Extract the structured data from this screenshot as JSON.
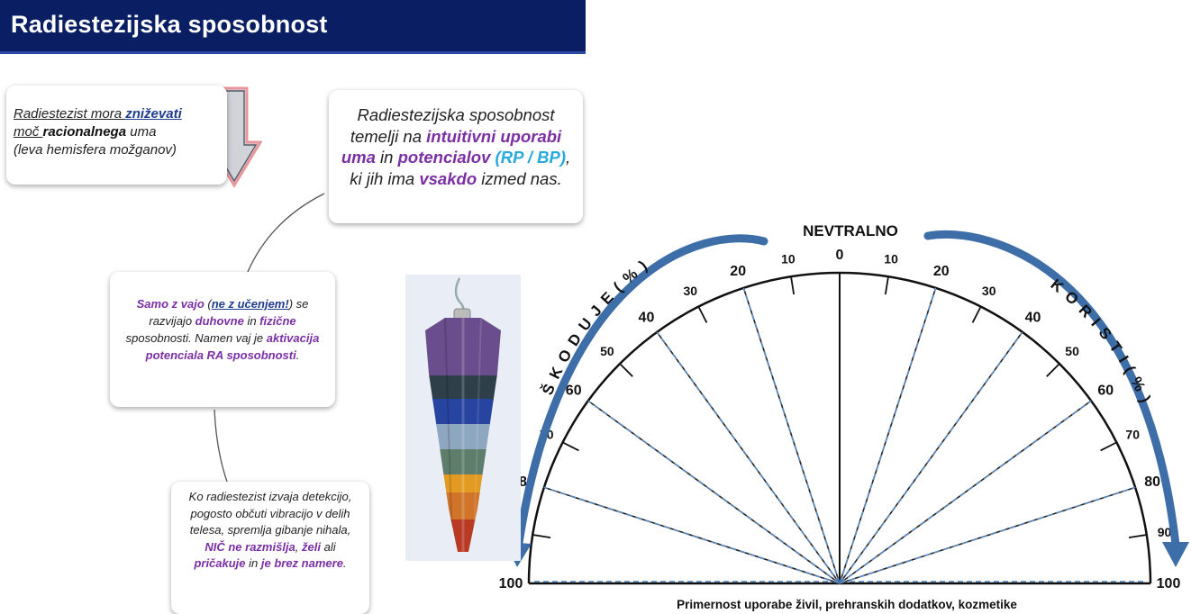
{
  "title": "Radiestezijska sposobnost",
  "box1": {
    "p1": "Radiestezist mora ",
    "p2": "zniževati",
    "p3": "moč ",
    "p4": "racionalnega",
    "p5": " uma",
    "p6": "(leva hemisfera možganov)"
  },
  "box2": {
    "p1": "Radiestezijska sposobnost temelji na ",
    "p2": "intuitivni uporabi uma",
    "p3": " in ",
    "p4": "potencialov",
    "p5": " (RP / BP)",
    "p6": ", ki jih ima ",
    "p7": "vsakdo",
    "p8": " izmed nas."
  },
  "box3": {
    "p1": "Samo z vajo",
    "p2": " (",
    "p3": "ne z učenjem!",
    "p4": ") se razvijajo ",
    "p5": "duhovne",
    "p6": " in ",
    "p7": "fizične",
    "p8": " sposobnosti. Namen vaj je ",
    "p9": "aktivacija potenciala RA sposobnosti",
    "p10": "."
  },
  "box4": {
    "p1": "Ko radiestezist izvaja detekcijo, pogosto občuti vibracijo v delih telesa, spremlja gibanje nihala, ",
    "p2": "NIČ ne razmišlja",
    "p3": ", ",
    "p4": "želi",
    "p5": " ali ",
    "p6": "pričakuje",
    "p7": " in ",
    "p8": "je brez namere",
    "p9": "."
  },
  "chart": {
    "top_label": "NEVTRALNO",
    "left_label": "ŠKODUJE",
    "right_label": "KORISTI",
    "percent": "(%)",
    "bottom_label": "Primernost uporabe živil, prehranskih dodatkov, kozmetike",
    "ticks": [
      "0",
      "10",
      "20",
      "30",
      "40",
      "50",
      "60",
      "70",
      "80",
      "90",
      "100"
    ]
  },
  "colors": {
    "title_bg": "#0a1f63",
    "arrow_blue": "#3d6ea8",
    "purple": "#7a2fa3",
    "cyan": "#29a8dc"
  }
}
